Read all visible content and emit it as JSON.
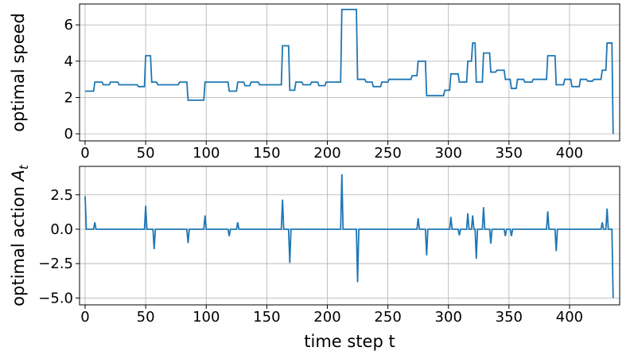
{
  "chart_data": [
    {
      "type": "line",
      "ylabel": "optimal speed",
      "x": [
        0,
        7,
        8,
        14,
        15,
        20,
        21,
        27,
        28,
        43,
        44,
        49,
        50,
        54,
        55,
        59,
        60,
        77,
        78,
        84,
        85,
        98,
        99,
        118,
        119,
        125,
        126,
        131,
        132,
        136,
        137,
        143,
        144,
        162,
        163,
        168,
        169,
        173,
        174,
        179,
        180,
        186,
        187,
        192,
        193,
        198,
        199,
        211,
        212,
        224,
        225,
        231,
        232,
        237,
        238,
        244,
        245,
        250,
        251,
        269,
        270,
        274,
        275,
        281,
        282,
        296,
        297,
        301,
        302,
        308,
        309,
        315,
        316,
        319,
        320,
        322,
        323,
        328,
        329,
        334,
        335,
        339,
        340,
        346,
        347,
        351,
        352,
        356,
        357,
        362,
        363,
        369,
        370,
        381,
        382,
        388,
        389,
        395,
        396,
        401,
        402,
        408,
        409,
        414,
        415,
        419,
        420,
        426,
        427,
        430,
        431,
        435,
        436
      ],
      "series": [
        {
          "color": "#1f77b4",
          "values": [
            2.35,
            2.35,
            2.85,
            2.85,
            2.7,
            2.7,
            2.85,
            2.85,
            2.7,
            2.7,
            2.6,
            2.6,
            4.3,
            4.3,
            2.85,
            2.85,
            2.7,
            2.7,
            2.85,
            2.85,
            1.85,
            1.85,
            2.85,
            2.85,
            2.35,
            2.35,
            2.85,
            2.85,
            2.65,
            2.65,
            2.85,
            2.85,
            2.7,
            2.7,
            4.85,
            4.85,
            2.4,
            2.4,
            2.85,
            2.85,
            2.7,
            2.7,
            2.85,
            2.85,
            2.65,
            2.65,
            2.85,
            2.85,
            6.85,
            6.85,
            3.0,
            3.0,
            2.85,
            2.85,
            2.6,
            2.6,
            2.85,
            2.85,
            3.0,
            3.0,
            3.2,
            3.2,
            4.0,
            4.0,
            2.1,
            2.1,
            2.4,
            2.4,
            3.3,
            3.3,
            2.85,
            2.85,
            4.0,
            4.0,
            5.0,
            5.0,
            2.85,
            2.85,
            4.45,
            4.45,
            3.4,
            3.4,
            3.5,
            3.5,
            3.0,
            3.0,
            2.5,
            2.5,
            3.0,
            3.0,
            2.85,
            2.85,
            3.0,
            3.0,
            4.3,
            4.3,
            2.7,
            2.7,
            3.0,
            3.0,
            2.6,
            2.6,
            3.0,
            3.0,
            2.9,
            2.9,
            3.0,
            3.0,
            3.5,
            3.5,
            5.0,
            5.0,
            0
          ]
        }
      ],
      "xlim": [
        -4.6,
        441.4
      ],
      "xticks": [
        0,
        50,
        100,
        150,
        200,
        250,
        300,
        350,
        400
      ],
      "ylim": [
        -0.39,
        7.15
      ],
      "yticks": [
        0,
        2,
        4,
        6
      ],
      "grid": true
    },
    {
      "type": "line",
      "ylabel": {
        "text": "optimal action ",
        "var": "A",
        "sub": "t"
      },
      "xlabel": "time step t",
      "x": [
        0,
        1,
        7,
        8,
        9,
        49,
        50,
        51,
        56,
        57,
        58,
        84,
        85,
        86,
        98,
        99,
        100,
        118,
        119,
        120,
        125,
        126,
        127,
        162,
        163,
        164,
        168,
        169,
        170,
        211,
        212,
        213,
        224,
        225,
        226,
        274,
        275,
        276,
        281,
        282,
        283,
        301,
        302,
        303,
        308,
        309,
        310,
        315,
        316,
        317,
        319,
        320,
        321,
        322,
        323,
        324,
        328,
        329,
        330,
        334,
        335,
        336,
        346,
        347,
        348,
        351,
        352,
        353,
        381,
        382,
        383,
        388,
        389,
        390,
        426,
        427,
        428,
        430,
        431,
        432,
        435,
        436
      ],
      "series": [
        {
          "color": "#1f77b4",
          "values": [
            2.4,
            0,
            0,
            0.5,
            0,
            0,
            1.7,
            0,
            0,
            -1.45,
            0,
            0,
            -1.0,
            0,
            0,
            1.0,
            0,
            0,
            -0.5,
            0,
            0,
            0.5,
            0,
            0,
            2.15,
            0,
            0,
            -2.45,
            0,
            0,
            4.0,
            0,
            0,
            -3.85,
            0,
            0,
            0.8,
            0,
            0,
            -1.9,
            0,
            0,
            0.9,
            0,
            0,
            -0.45,
            0,
            0,
            1.15,
            0,
            0,
            1.0,
            0,
            0,
            -2.15,
            0,
            0,
            1.6,
            0,
            0,
            -1.05,
            0,
            0,
            -0.5,
            0,
            0,
            -0.5,
            0,
            0,
            1.3,
            0,
            0,
            -1.6,
            0,
            0,
            0.5,
            0,
            0,
            1.5,
            0,
            0,
            -5.0
          ]
        }
      ],
      "xlim": [
        -4.6,
        441.4
      ],
      "xticks": [
        0,
        50,
        100,
        150,
        200,
        250,
        300,
        350,
        400
      ],
      "ylim": [
        -5.5,
        4.57
      ],
      "yticks": [
        {
          "value": -5,
          "label": "−5.0"
        },
        {
          "value": -2.5,
          "label": "−2.5"
        },
        {
          "value": 0,
          "label": "0.0"
        },
        2.5
      ],
      "grid": true
    }
  ]
}
